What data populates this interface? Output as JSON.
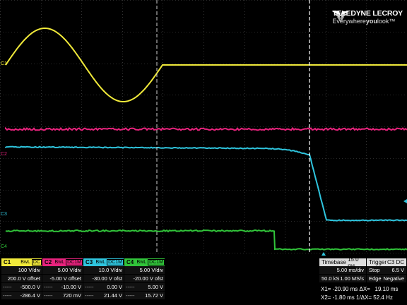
{
  "brand": {
    "name": "TELEDYNE LECROY",
    "tagline_pre": "Everywhere",
    "tagline_bold": "you",
    "tagline_post": "look"
  },
  "colors": {
    "c1": "#f0e93a",
    "c2": "#e8237d",
    "c3": "#2fc5de",
    "c4": "#31c43a"
  },
  "icons": {
    "logo": "teledyne-logo-icon",
    "trigger_marker": "trigger-arrow-icon"
  },
  "trace_labels": {
    "c1": "C1",
    "c2": "C2",
    "c3": "C3",
    "c4": "C4"
  },
  "channels": [
    {
      "name": "C1",
      "bw": "BwL",
      "coupling": "DC",
      "vdiv": "100 V/div",
      "offset": "200.0 V offset",
      "m1": "-500.0 V",
      "m2": "-286.4 V"
    },
    {
      "name": "C2",
      "bw": "BwL",
      "coupling": "DC1M",
      "vdiv": "5.00 V/div",
      "offset": "-5.00 V offset",
      "m1": "-10.00 V",
      "m2": "720 mV"
    },
    {
      "name": "C3",
      "bw": "BwL",
      "coupling": "DC1M",
      "vdiv": "10.0 V/div",
      "offset": "-30.00 V ofst",
      "m1": "0.00 V",
      "m2": "21.44 V"
    },
    {
      "name": "C4",
      "bw": "BwL",
      "coupling": "DC1M",
      "vdiv": "5.00 V/div",
      "offset": "-20.00 V ofst",
      "m1": "5.00 V",
      "m2": "15.72 V"
    }
  ],
  "row_dash": "-----",
  "timebase": {
    "label": "Timebase",
    "value": "15.0 ms",
    "per_div": "5.00 ms/div",
    "samples": "50.0 kS",
    "rate": "1.00 MS/s"
  },
  "trigger": {
    "label": "Trigger",
    "channel": "C3",
    "coupling": "DC",
    "mode": "Stop",
    "level": "6.5 V",
    "type": "Edge",
    "slope": "Negative"
  },
  "cursors": {
    "x1": "X1= -20.90 ms",
    "dx": "ΔX=",
    "dx_value": "19.10 ms",
    "x2": "X2= -1.80 ms",
    "inv_dx": "1/ΔX= 52.4 Hz"
  }
}
